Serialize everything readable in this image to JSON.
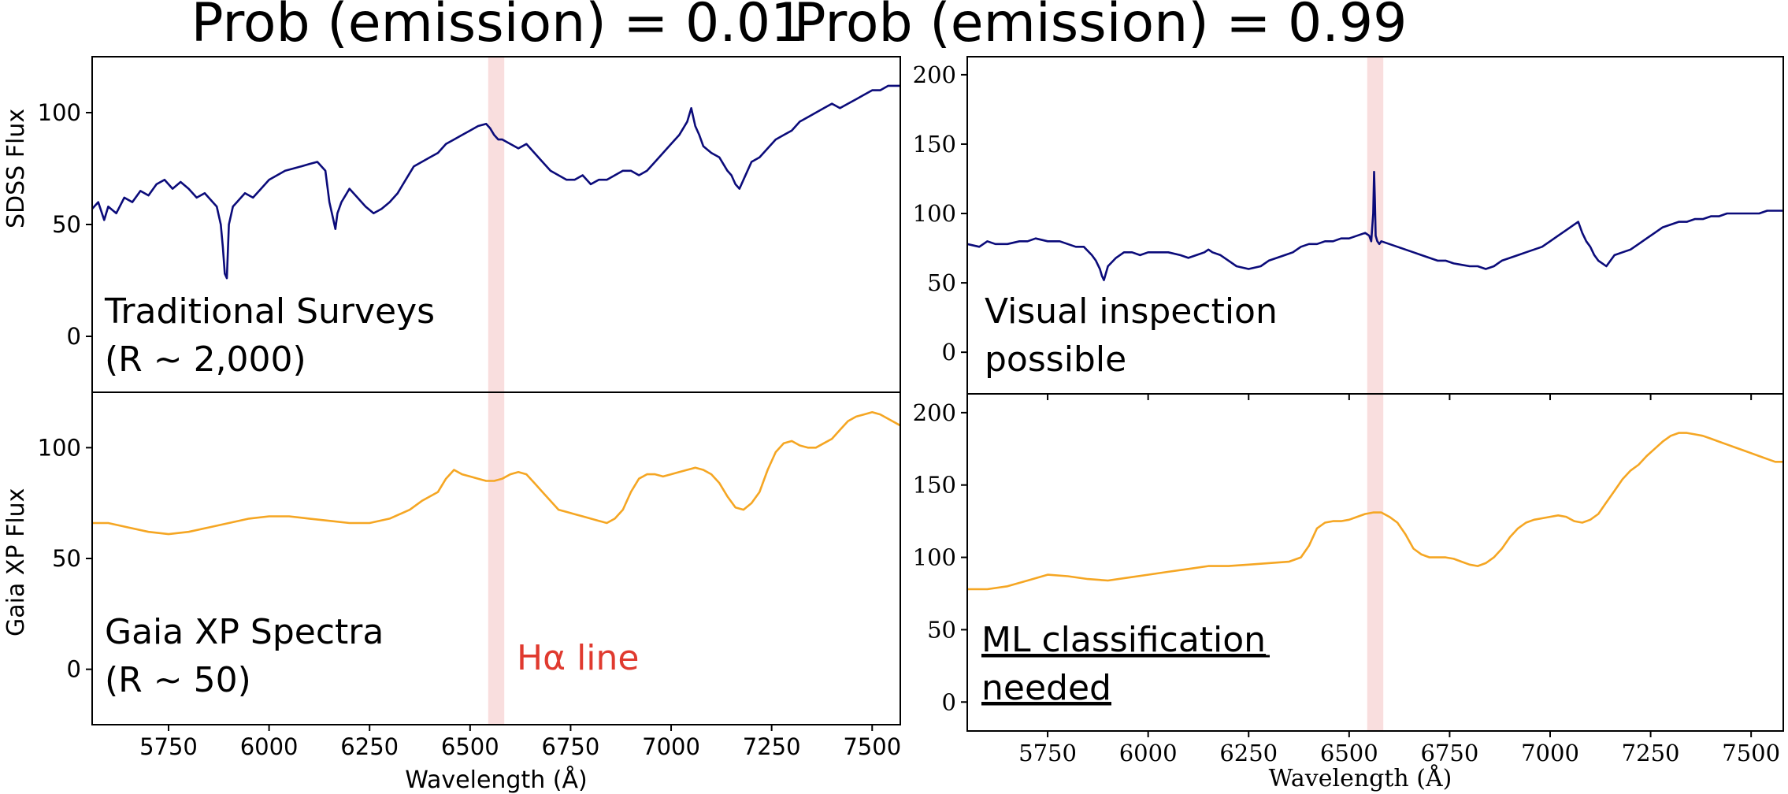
{
  "colors": {
    "sdss_line": "#0b0b7a",
    "gaia_line": "#f5a623",
    "halpha_band": "#f6cccc",
    "halpha_text": "#e03a2f"
  },
  "chart_data": [
    {
      "panel": "top-left",
      "type": "line",
      "title": "Prob (emission) = 0.01",
      "ylabel": "SDSS Flux",
      "xlabel": "",
      "xlim": [
        5560,
        7570
      ],
      "ylim": [
        -25,
        125
      ],
      "yticks": [
        "0",
        "50",
        "100"
      ],
      "annotation": [
        "Traditional Surveys",
        "(R ~ 2,000)"
      ],
      "highlight": [
        6545,
        6585
      ],
      "x": [
        5560,
        5575,
        5590,
        5600,
        5620,
        5640,
        5660,
        5680,
        5700,
        5720,
        5740,
        5760,
        5780,
        5800,
        5820,
        5840,
        5860,
        5870,
        5880,
        5885,
        5890,
        5895,
        5900,
        5910,
        5920,
        5940,
        5960,
        5980,
        6000,
        6020,
        6040,
        6060,
        6080,
        6100,
        6120,
        6140,
        6150,
        6160,
        6165,
        6170,
        6180,
        6200,
        6220,
        6240,
        6260,
        6280,
        6300,
        6320,
        6340,
        6360,
        6380,
        6400,
        6420,
        6440,
        6460,
        6480,
        6500,
        6520,
        6540,
        6550,
        6560,
        6570,
        6580,
        6600,
        6620,
        6640,
        6660,
        6680,
        6700,
        6720,
        6740,
        6760,
        6780,
        6800,
        6820,
        6840,
        6860,
        6880,
        6900,
        6920,
        6940,
        6960,
        6980,
        7000,
        7020,
        7040,
        7050,
        7060,
        7070,
        7080,
        7100,
        7120,
        7140,
        7150,
        7160,
        7170,
        7180,
        7200,
        7220,
        7240,
        7260,
        7280,
        7300,
        7320,
        7340,
        7360,
        7380,
        7400,
        7420,
        7440,
        7460,
        7480,
        7500,
        7520,
        7540,
        7560,
        7570
      ],
      "values": [
        57,
        60,
        52,
        58,
        55,
        62,
        60,
        65,
        63,
        68,
        70,
        66,
        69,
        66,
        62,
        64,
        60,
        58,
        50,
        40,
        28,
        26,
        50,
        58,
        60,
        64,
        62,
        66,
        70,
        72,
        74,
        75,
        76,
        77,
        78,
        74,
        60,
        52,
        48,
        55,
        60,
        66,
        62,
        58,
        55,
        57,
        60,
        64,
        70,
        76,
        78,
        80,
        82,
        86,
        88,
        90,
        92,
        94,
        95,
        93,
        90,
        88,
        88,
        86,
        84,
        86,
        82,
        78,
        74,
        72,
        70,
        70,
        72,
        68,
        70,
        70,
        72,
        74,
        74,
        72,
        74,
        78,
        82,
        86,
        90,
        96,
        102,
        94,
        90,
        85,
        82,
        80,
        74,
        72,
        68,
        66,
        70,
        78,
        80,
        84,
        88,
        90,
        92,
        96,
        98,
        100,
        102,
        104,
        102,
        104,
        106,
        108,
        110,
        110,
        112,
        112,
        112
      ],
      "values_note": ""
    },
    {
      "panel": "bottom-left",
      "type": "line",
      "title": "",
      "ylabel": "Gaia XP Flux",
      "xlabel": "Wavelength (Å)",
      "xlim": [
        5560,
        7570
      ],
      "ylim": [
        -25,
        125
      ],
      "yticks": [
        "0",
        "50",
        "100"
      ],
      "xticks": [
        "5750",
        "6000",
        "6250",
        "6500",
        "6750",
        "7000",
        "7250",
        "7500"
      ],
      "annotation": [
        "Gaia XP Spectra",
        "(R ~ 50)"
      ],
      "halpha_label": "Hα line",
      "highlight": [
        6545,
        6585
      ],
      "x": [
        5560,
        5600,
        5650,
        5700,
        5750,
        5800,
        5850,
        5900,
        5950,
        6000,
        6050,
        6100,
        6150,
        6200,
        6250,
        6300,
        6350,
        6380,
        6400,
        6420,
        6440,
        6460,
        6480,
        6500,
        6520,
        6540,
        6560,
        6580,
        6600,
        6620,
        6640,
        6660,
        6680,
        6700,
        6720,
        6740,
        6760,
        6780,
        6800,
        6820,
        6840,
        6860,
        6880,
        6900,
        6920,
        6940,
        6960,
        6980,
        7000,
        7020,
        7040,
        7060,
        7080,
        7100,
        7120,
        7140,
        7160,
        7180,
        7200,
        7220,
        7240,
        7260,
        7280,
        7300,
        7320,
        7340,
        7360,
        7380,
        7400,
        7420,
        7440,
        7460,
        7480,
        7500,
        7520,
        7540,
        7570
      ],
      "values": [
        66,
        66,
        64,
        62,
        61,
        62,
        64,
        66,
        68,
        69,
        69,
        68,
        67,
        66,
        66,
        68,
        72,
        76,
        78,
        80,
        86,
        90,
        88,
        87,
        86,
        85,
        85,
        86,
        88,
        89,
        88,
        84,
        80,
        76,
        72,
        71,
        70,
        69,
        68,
        67,
        66,
        68,
        72,
        80,
        86,
        88,
        88,
        87,
        88,
        89,
        90,
        91,
        90,
        88,
        84,
        78,
        73,
        72,
        75,
        80,
        90,
        98,
        102,
        103,
        101,
        100,
        100,
        102,
        104,
        108,
        112,
        114,
        115,
        116,
        115,
        113,
        110
      ]
    },
    {
      "panel": "top-right",
      "type": "line",
      "title": "Prob (emission) = 0.99",
      "ylabel": "",
      "xlabel": "",
      "xlim": [
        5550,
        7580
      ],
      "ylim": [
        -30,
        213
      ],
      "yticks": [
        "0",
        "50",
        "100",
        "150",
        "200"
      ],
      "annotation": [
        "Visual inspection",
        "possible"
      ],
      "highlight": [
        6545,
        6585
      ],
      "x": [
        5550,
        5580,
        5600,
        5620,
        5650,
        5680,
        5700,
        5720,
        5750,
        5780,
        5800,
        5820,
        5840,
        5860,
        5870,
        5880,
        5885,
        5890,
        5900,
        5920,
        5940,
        5960,
        5980,
        6000,
        6020,
        6050,
        6080,
        6100,
        6120,
        6140,
        6150,
        6160,
        6180,
        6200,
        6220,
        6250,
        6280,
        6300,
        6320,
        6340,
        6360,
        6380,
        6400,
        6420,
        6440,
        6460,
        6480,
        6500,
        6520,
        6540,
        6550,
        6555,
        6560,
        6562,
        6564,
        6566,
        6570,
        6575,
        6580,
        6600,
        6620,
        6640,
        6660,
        6680,
        6700,
        6720,
        6740,
        6760,
        6780,
        6800,
        6820,
        6840,
        6860,
        6880,
        6900,
        6920,
        6940,
        6960,
        6980,
        7000,
        7020,
        7040,
        7060,
        7070,
        7080,
        7090,
        7100,
        7110,
        7120,
        7130,
        7140,
        7150,
        7160,
        7180,
        7200,
        7220,
        7240,
        7260,
        7280,
        7300,
        7320,
        7340,
        7360,
        7380,
        7400,
        7420,
        7440,
        7460,
        7480,
        7500,
        7520,
        7540,
        7560,
        7580
      ],
      "values": [
        78,
        76,
        80,
        78,
        78,
        80,
        80,
        82,
        80,
        80,
        78,
        76,
        76,
        70,
        66,
        60,
        55,
        52,
        62,
        68,
        72,
        72,
        70,
        72,
        72,
        72,
        70,
        68,
        70,
        72,
        74,
        72,
        70,
        66,
        62,
        60,
        62,
        66,
        68,
        70,
        72,
        76,
        78,
        78,
        80,
        80,
        82,
        82,
        84,
        86,
        84,
        80,
        100,
        130,
        110,
        84,
        80,
        78,
        80,
        78,
        76,
        74,
        72,
        70,
        68,
        66,
        66,
        64,
        63,
        62,
        62,
        60,
        62,
        66,
        68,
        70,
        72,
        74,
        76,
        80,
        84,
        88,
        92,
        94,
        86,
        80,
        76,
        70,
        66,
        64,
        62,
        66,
        70,
        72,
        74,
        78,
        82,
        86,
        90,
        92,
        94,
        94,
        96,
        96,
        98,
        98,
        100,
        100,
        100,
        100,
        100,
        102,
        102,
        102
      ]
    },
    {
      "panel": "bottom-right",
      "type": "line",
      "title": "",
      "ylabel": "",
      "xlabel": "Wavelength (Å)",
      "xlim": [
        5550,
        7580
      ],
      "ylim": [
        -20,
        213
      ],
      "yticks": [
        "0",
        "50",
        "100",
        "150",
        "200"
      ],
      "xticks": [
        "5750",
        "6000",
        "6250",
        "6500",
        "6750",
        "7000",
        "7250",
        "7500"
      ],
      "annotation": [
        "ML classification",
        "needed"
      ],
      "highlight": [
        6545,
        6585
      ],
      "x": [
        5550,
        5600,
        5650,
        5700,
        5750,
        5800,
        5850,
        5900,
        5950,
        6000,
        6050,
        6100,
        6150,
        6200,
        6250,
        6300,
        6350,
        6380,
        6400,
        6420,
        6440,
        6460,
        6480,
        6500,
        6520,
        6540,
        6560,
        6580,
        6600,
        6620,
        6640,
        6660,
        6680,
        6700,
        6720,
        6740,
        6760,
        6780,
        6800,
        6820,
        6840,
        6860,
        6880,
        6900,
        6920,
        6940,
        6960,
        6980,
        7000,
        7020,
        7040,
        7060,
        7080,
        7100,
        7120,
        7140,
        7160,
        7180,
        7200,
        7220,
        7240,
        7260,
        7280,
        7300,
        7320,
        7340,
        7360,
        7380,
        7400,
        7420,
        7440,
        7460,
        7480,
        7500,
        7520,
        7540,
        7560,
        7580
      ],
      "values": [
        78,
        78,
        80,
        84,
        88,
        87,
        85,
        84,
        86,
        88,
        90,
        92,
        94,
        94,
        95,
        96,
        97,
        100,
        108,
        120,
        124,
        125,
        125,
        126,
        128,
        130,
        131,
        131,
        128,
        124,
        116,
        106,
        102,
        100,
        100,
        100,
        99,
        97,
        95,
        94,
        96,
        100,
        106,
        114,
        120,
        124,
        126,
        127,
        128,
        129,
        128,
        125,
        124,
        126,
        130,
        138,
        146,
        154,
        160,
        164,
        170,
        175,
        180,
        184,
        186,
        186,
        185,
        184,
        182,
        180,
        178,
        176,
        174,
        172,
        170,
        168,
        166,
        166
      ]
    }
  ]
}
